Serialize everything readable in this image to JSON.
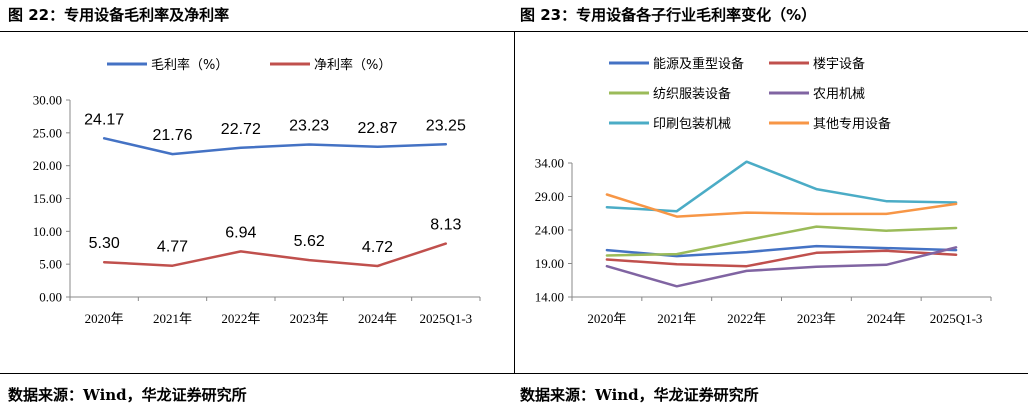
{
  "left_panel": {
    "title": "图 22：专用设备毛利率及净利率",
    "source": "数据来源：Wind，华龙证券研究所"
  },
  "right_panel": {
    "title": "图 23：专用设备各子行业毛利率变化（%）",
    "source": "数据来源：Wind，华龙证券研究所"
  },
  "chart_data": [
    {
      "type": "line",
      "categories": [
        "2020年",
        "2021年",
        "2022年",
        "2023年",
        "2024年",
        "2025Q1-3"
      ],
      "ylim": [
        0,
        30
      ],
      "yticks": [
        "0.00",
        "5.00",
        "10.00",
        "15.00",
        "20.00",
        "25.00",
        "30.00"
      ],
      "ytick_values": [
        0,
        5,
        10,
        15,
        20,
        25,
        30
      ],
      "legend_position": "top",
      "series": [
        {
          "name": "毛利率（%）",
          "color": "#4472c4",
          "values": [
            24.17,
            21.76,
            22.72,
            23.23,
            22.87,
            23.25
          ],
          "labels": [
            "24.17",
            "21.76",
            "22.72",
            "23.23",
            "22.87",
            "23.25"
          ]
        },
        {
          "name": "净利率（%）",
          "color": "#c0504d",
          "values": [
            5.3,
            4.77,
            6.94,
            5.62,
            4.72,
            8.13
          ],
          "labels": [
            "5.30",
            "4.77",
            "6.94",
            "5.62",
            "4.72",
            "8.13"
          ]
        }
      ]
    },
    {
      "type": "line",
      "categories": [
        "2020年",
        "2021年",
        "2022年",
        "2023年",
        "2024年",
        "2025Q1-3"
      ],
      "ylim": [
        14,
        34
      ],
      "yticks": [
        "14.00",
        "19.00",
        "24.00",
        "29.00",
        "34.00"
      ],
      "ytick_values": [
        14,
        19,
        24,
        29,
        34
      ],
      "legend_position": "top",
      "series": [
        {
          "name": "能源及重型设备",
          "color": "#4472c4",
          "values": [
            21.0,
            20.1,
            20.7,
            21.6,
            21.3,
            21.0
          ]
        },
        {
          "name": "楼宇设备",
          "color": "#c0504d",
          "values": [
            19.6,
            18.9,
            18.6,
            20.6,
            20.9,
            20.3
          ]
        },
        {
          "name": "纺织服装设备",
          "color": "#9bbb59",
          "values": [
            20.2,
            20.4,
            22.5,
            24.5,
            23.9,
            24.3
          ]
        },
        {
          "name": "农用机械",
          "color": "#8064a2",
          "values": [
            18.6,
            15.6,
            17.9,
            18.5,
            18.8,
            21.4
          ]
        },
        {
          "name": "印刷包装机械",
          "color": "#4bacc6",
          "values": [
            27.4,
            26.8,
            34.2,
            30.1,
            28.3,
            28.1
          ]
        },
        {
          "name": "其他专用设备",
          "color": "#f79646",
          "values": [
            29.3,
            26.0,
            26.6,
            26.4,
            26.4,
            27.9
          ]
        }
      ]
    }
  ]
}
